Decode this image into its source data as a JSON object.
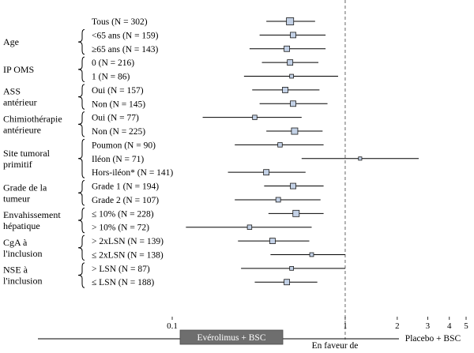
{
  "chart_data": {
    "type": "forest",
    "x_scale": "log",
    "xlim": [
      0.1,
      5
    ],
    "reference_line": 1,
    "xticks": [
      {
        "v": 0.1,
        "label": "0.1"
      },
      {
        "v": 1,
        "label": "1"
      },
      {
        "v": 2,
        "label": "2"
      },
      {
        "v": 3,
        "label": "3"
      },
      {
        "v": 4,
        "label": "4"
      },
      {
        "v": 5,
        "label": "5"
      }
    ],
    "left_label": "Evérolimus + BSC",
    "center_label": "En faveur de",
    "right_label": "Placebo + BSC",
    "groups": [
      {
        "label": [
          "Age"
        ],
        "first": 1,
        "last": 2
      },
      {
        "label": [
          "IP OMS"
        ],
        "first": 3,
        "last": 4
      },
      {
        "label": [
          "ASS",
          "antérieur"
        ],
        "first": 5,
        "last": 6
      },
      {
        "label": [
          "Chimiothérapie",
          "antérieure"
        ],
        "first": 7,
        "last": 8
      },
      {
        "label": [
          "Site tumoral",
          "primitif"
        ],
        "first": 9,
        "last": 11
      },
      {
        "label": [
          "Grade de la",
          "tumeur"
        ],
        "first": 12,
        "last": 13
      },
      {
        "label": [
          "Envahissement",
          "hépatique"
        ],
        "first": 14,
        "last": 15
      },
      {
        "label": [
          "CgA à",
          "l'inclusion"
        ],
        "first": 16,
        "last": 17
      },
      {
        "label": [
          "NSE à",
          "l'inclusion"
        ],
        "first": 18,
        "last": 19
      }
    ],
    "rows": [
      {
        "label": "Tous (N = 302)",
        "hr": 0.48,
        "lo": 0.35,
        "hi": 0.67,
        "size": 1.3
      },
      {
        "label": "<65 ans (N = 159)",
        "hr": 0.5,
        "lo": 0.32,
        "hi": 0.77,
        "size": 1.0
      },
      {
        "label": "≥65 ans (N = 143)",
        "hr": 0.46,
        "lo": 0.28,
        "hi": 0.77,
        "size": 1.0
      },
      {
        "label": "0 (N = 216)",
        "hr": 0.48,
        "lo": 0.33,
        "hi": 0.7,
        "size": 1.0
      },
      {
        "label": "1 (N = 86)",
        "hr": 0.49,
        "lo": 0.26,
        "hi": 0.91,
        "size": 0.7
      },
      {
        "label": "Oui (N = 157)",
        "hr": 0.45,
        "lo": 0.29,
        "hi": 0.71,
        "size": 1.0
      },
      {
        "label": "Non (N = 145)",
        "hr": 0.5,
        "lo": 0.32,
        "hi": 0.79,
        "size": 1.0
      },
      {
        "label": "Oui (N = 77)",
        "hr": 0.3,
        "lo": 0.15,
        "hi": 0.56,
        "size": 0.8
      },
      {
        "label": "Non (N = 225)",
        "hr": 0.51,
        "lo": 0.35,
        "hi": 0.74,
        "size": 1.15
      },
      {
        "label": "Poumon (N = 90)",
        "hr": 0.42,
        "lo": 0.23,
        "hi": 0.75,
        "size": 0.8
      },
      {
        "label": "Iléon (N = 71)",
        "hr": 1.22,
        "lo": 0.56,
        "hi": 2.66,
        "size": 0.6
      },
      {
        "label": "Hors-iléon* (N = 141)",
        "hr": 0.35,
        "lo": 0.21,
        "hi": 0.59,
        "size": 1.0
      },
      {
        "label": "Grade 1 (N = 194)",
        "hr": 0.5,
        "lo": 0.34,
        "hi": 0.75,
        "size": 1.0
      },
      {
        "label": "Grade 2 (N = 107)",
        "hr": 0.41,
        "lo": 0.23,
        "hi": 0.72,
        "size": 0.85
      },
      {
        "label": "≤ 10% (N = 228)",
        "hr": 0.52,
        "lo": 0.36,
        "hi": 0.75,
        "size": 1.15
      },
      {
        "label": "> 10% (N = 72)",
        "hr": 0.28,
        "lo": 0.12,
        "hi": 0.64,
        "size": 0.8
      },
      {
        "label": "> 2xLSN (N = 139)",
        "hr": 0.38,
        "lo": 0.24,
        "hi": 0.62,
        "size": 1.0
      },
      {
        "label": "≤ 2xLSN (N = 138)",
        "hr": 0.64,
        "lo": 0.37,
        "hi": 1.0,
        "size": 0.7
      },
      {
        "label": "> LSN (N = 87)",
        "hr": 0.49,
        "lo": 0.25,
        "hi": 1.0,
        "size": 0.7
      },
      {
        "label": "≤ LSN (N = 188)",
        "hr": 0.46,
        "lo": 0.3,
        "hi": 0.69,
        "size": 1.0
      }
    ]
  },
  "colors": {
    "box_fill": "#c3d1e6",
    "box_stroke": "#1a1a1a",
    "line": "#000000",
    "ref_line": "#666666",
    "banner_fill": "#6e6e6e",
    "banner_text": "#ffffff"
  }
}
